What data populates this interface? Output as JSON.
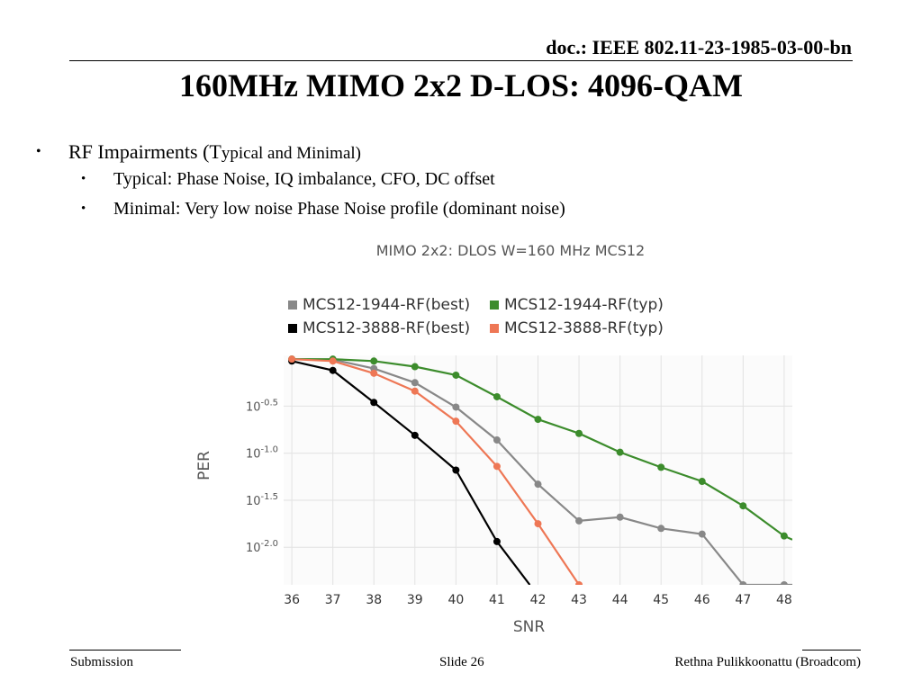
{
  "header": {
    "doc_id": "doc.: IEEE 802.11-23-1985-03-00-bn",
    "title": "160MHz MIMO 2x2 D-LOS: 4096-QAM"
  },
  "bullets": {
    "level1": {
      "text_main": "RF Impairments (T",
      "text_small": "ypical and Minimal)"
    },
    "level2": [
      {
        "text": "Typical: Phase Noise, IQ imbalance, CFO, DC offset"
      },
      {
        "text": "Minimal: Very low noise Phase Noise profile (dominant noise)"
      }
    ]
  },
  "chart_data": {
    "type": "line",
    "title": "MIMO 2x2: DLOS W=160 MHz MCS12",
    "xlabel": "SNR",
    "ylabel": "PER",
    "log_y": true,
    "grid": true,
    "legend_position": "top-left",
    "xlim": [
      35.8,
      48.2
    ],
    "ylim_log10": [
      -2.4,
      0.04
    ],
    "x_ticks": [
      36,
      37,
      38,
      39,
      40,
      41,
      42,
      43,
      44,
      45,
      46,
      47,
      48
    ],
    "y_ticks": [
      {
        "value_log10": -0.5,
        "base": "10",
        "exp": "-0.5"
      },
      {
        "value_log10": -1.0,
        "base": "10",
        "exp": "-1.0"
      },
      {
        "value_log10": -1.5,
        "base": "10",
        "exp": "-1.5"
      },
      {
        "value_log10": -2.0,
        "base": "10",
        "exp": "-2.0"
      }
    ],
    "series": [
      {
        "name": "MCS12-1944-RF(best)",
        "color": "#888888",
        "x": [
          36,
          37,
          38,
          39,
          40,
          41,
          42,
          43,
          44,
          45,
          46,
          47,
          48,
          48.2
        ],
        "y_log10": [
          0,
          -0.005,
          -0.1,
          -0.25,
          -0.51,
          -0.86,
          -1.33,
          -1.72,
          -1.68,
          -1.8,
          -1.86,
          -2.4,
          -2.4,
          -2.4
        ]
      },
      {
        "name": "MCS12-1944-RF(typ)",
        "color": "#3c8c2c",
        "x": [
          36,
          37,
          38,
          39,
          40,
          41,
          42,
          43,
          44,
          45,
          46,
          47,
          48,
          48.2
        ],
        "y_log10": [
          0,
          0,
          -0.02,
          -0.08,
          -0.17,
          -0.4,
          -0.64,
          -0.79,
          -0.99,
          -1.15,
          -1.3,
          -1.56,
          -1.88,
          -1.92
        ]
      },
      {
        "name": "MCS12-3888-RF(best)",
        "color": "#000000",
        "x": [
          36,
          37,
          38,
          39,
          40,
          41,
          41.8
        ],
        "y_log10": [
          -0.02,
          -0.12,
          -0.46,
          -0.81,
          -1.18,
          -1.94,
          -2.4
        ]
      },
      {
        "name": "MCS12-3888-RF(typ)",
        "color": "#ee7755",
        "x": [
          36,
          37,
          38,
          39,
          40,
          41,
          42,
          43
        ],
        "y_log10": [
          0,
          -0.02,
          -0.15,
          -0.34,
          -0.66,
          -1.14,
          -1.75,
          -2.4
        ]
      }
    ]
  },
  "footer": {
    "left": "Submission",
    "center": "Slide 26",
    "right": "Rethna Pulikkoonattu (Broadcom)"
  }
}
